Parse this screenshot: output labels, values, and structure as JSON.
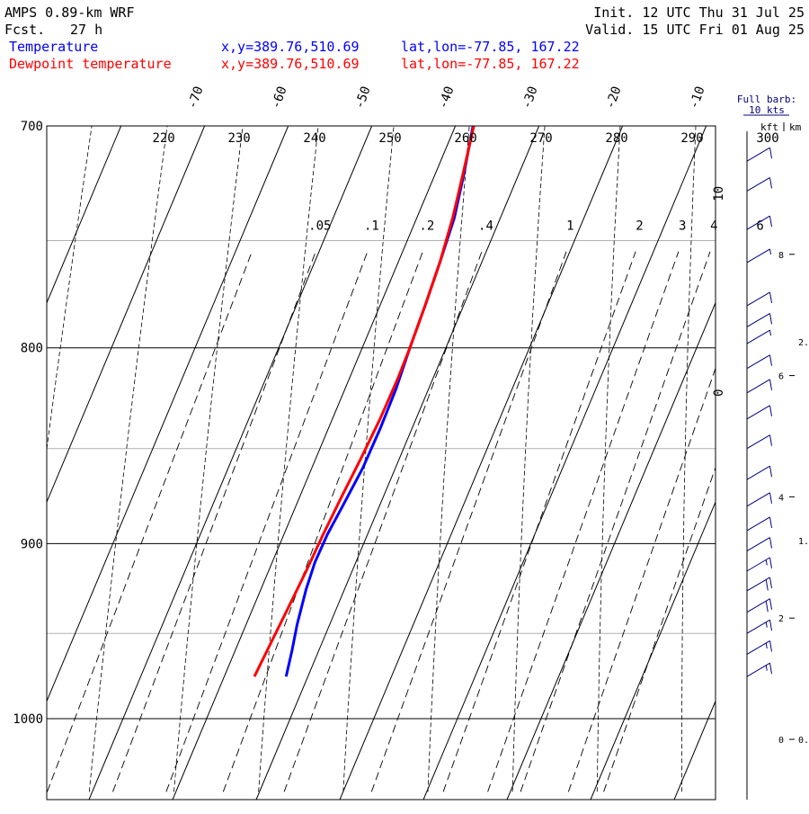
{
  "header": {
    "model_line": "AMPS 0.89-km WRF",
    "fcst_label": "Fcst.",
    "fcst_value": "27 h",
    "init_line": "Init. 12 UTC Thu 31 Jul 25",
    "valid_line": "Valid. 15 UTC Fri 01 Aug 25",
    "series": [
      {
        "name": "Temperature",
        "xy": "x,y=389.76,510.69",
        "latlon": "lat,lon=-77.85, 167.22",
        "color": "#0000ff"
      },
      {
        "name": "Dewpoint temperature",
        "xy": "x,y=389.76,510.69",
        "latlon": "lat,lon=-77.85, 167.22",
        "color": "#ff0000"
      }
    ]
  },
  "barb_legend": {
    "line1": "Full barb:",
    "line2": "10 kts"
  },
  "height_axis": {
    "units": [
      "kft",
      "km"
    ],
    "kft_ticks": [
      {
        "label": "0",
        "km": 0
      },
      {
        "label": "2",
        "km": 0.61
      },
      {
        "label": "4",
        "km": 1.22
      },
      {
        "label": "6",
        "km": 1.83
      },
      {
        "label": "8",
        "km": 2.44
      }
    ],
    "km_ticks": [
      {
        "label": "0.",
        "km": 0
      },
      {
        "label": "1.",
        "km": 1
      },
      {
        "label": "2.",
        "km": 2
      }
    ]
  },
  "chart_data": {
    "type": "line",
    "plot_kind": "skew-T log-p",
    "y_axis": {
      "scale": "log",
      "ylim": [
        1040,
        700
      ],
      "ticks": [
        700,
        800,
        900,
        1000
      ]
    },
    "x_axis": {
      "units": "°C",
      "ticks": [
        -70,
        -60,
        -50,
        -40,
        -30,
        -20,
        -10,
        0,
        10
      ]
    },
    "gray_isobars": [
      750,
      850,
      950
    ],
    "theta_labels": [
      "220",
      "230",
      "240",
      "250",
      "260",
      "270",
      "280",
      "290",
      "300"
    ],
    "mixing_ratio_labels": [
      ".05",
      ".1",
      ".2",
      ".4",
      "1",
      "2",
      "3",
      "4",
      "6"
    ],
    "series": [
      {
        "name": "Temperature",
        "color": "#0000ff",
        "points": [
          {
            "p": 975,
            "t": -32.6
          },
          {
            "p": 960,
            "t": -33.2
          },
          {
            "p": 945,
            "t": -33.9
          },
          {
            "p": 925,
            "t": -34.6
          },
          {
            "p": 910,
            "t": -34.9
          },
          {
            "p": 895,
            "t": -34.8
          },
          {
            "p": 880,
            "t": -34.4
          },
          {
            "p": 860,
            "t": -33.9
          },
          {
            "p": 840,
            "t": -33.8
          },
          {
            "p": 820,
            "t": -33.9
          },
          {
            "p": 800,
            "t": -34.3
          },
          {
            "p": 780,
            "t": -34.6
          },
          {
            "p": 760,
            "t": -35.0
          },
          {
            "p": 740,
            "t": -35.5
          },
          {
            "p": 720,
            "t": -36.6
          },
          {
            "p": 700,
            "t": -37.9
          }
        ]
      },
      {
        "name": "Dewpoint temperature",
        "color": "#ff0000",
        "points": [
          {
            "p": 975,
            "t": -36.4
          },
          {
            "p": 955,
            "t": -36.1
          },
          {
            "p": 935,
            "t": -35.8
          },
          {
            "p": 915,
            "t": -35.5
          },
          {
            "p": 895,
            "t": -35.3
          },
          {
            "p": 875,
            "t": -35.0
          },
          {
            "p": 855,
            "t": -34.6
          },
          {
            "p": 835,
            "t": -34.3
          },
          {
            "p": 815,
            "t": -34.2
          },
          {
            "p": 800,
            "t": -34.3
          },
          {
            "p": 780,
            "t": -34.6
          },
          {
            "p": 760,
            "t": -35.0
          },
          {
            "p": 740,
            "t": -35.7
          },
          {
            "p": 720,
            "t": -36.7
          },
          {
            "p": 700,
            "t": -37.8
          }
        ]
      }
    ],
    "wind_barbs": [
      {
        "p": 975,
        "speed_kts": 15
      },
      {
        "p": 962,
        "speed_kts": 15
      },
      {
        "p": 950,
        "speed_kts": 15
      },
      {
        "p": 938,
        "speed_kts": 20
      },
      {
        "p": 926,
        "speed_kts": 20
      },
      {
        "p": 915,
        "speed_kts": 15
      },
      {
        "p": 904,
        "speed_kts": 10
      },
      {
        "p": 893,
        "speed_kts": 10
      },
      {
        "p": 880,
        "speed_kts": 10
      },
      {
        "p": 866,
        "speed_kts": 10
      },
      {
        "p": 850,
        "speed_kts": 10
      },
      {
        "p": 835,
        "speed_kts": 10
      },
      {
        "p": 822,
        "speed_kts": 10
      },
      {
        "p": 810,
        "speed_kts": 10
      },
      {
        "p": 798,
        "speed_kts": 5
      },
      {
        "p": 790,
        "speed_kts": 10
      },
      {
        "p": 780,
        "speed_kts": 10
      },
      {
        "p": 760,
        "speed_kts": 5
      },
      {
        "p": 745,
        "speed_kts": 10
      },
      {
        "p": 728,
        "speed_kts": 10
      },
      {
        "p": 715,
        "speed_kts": 10
      }
    ]
  }
}
